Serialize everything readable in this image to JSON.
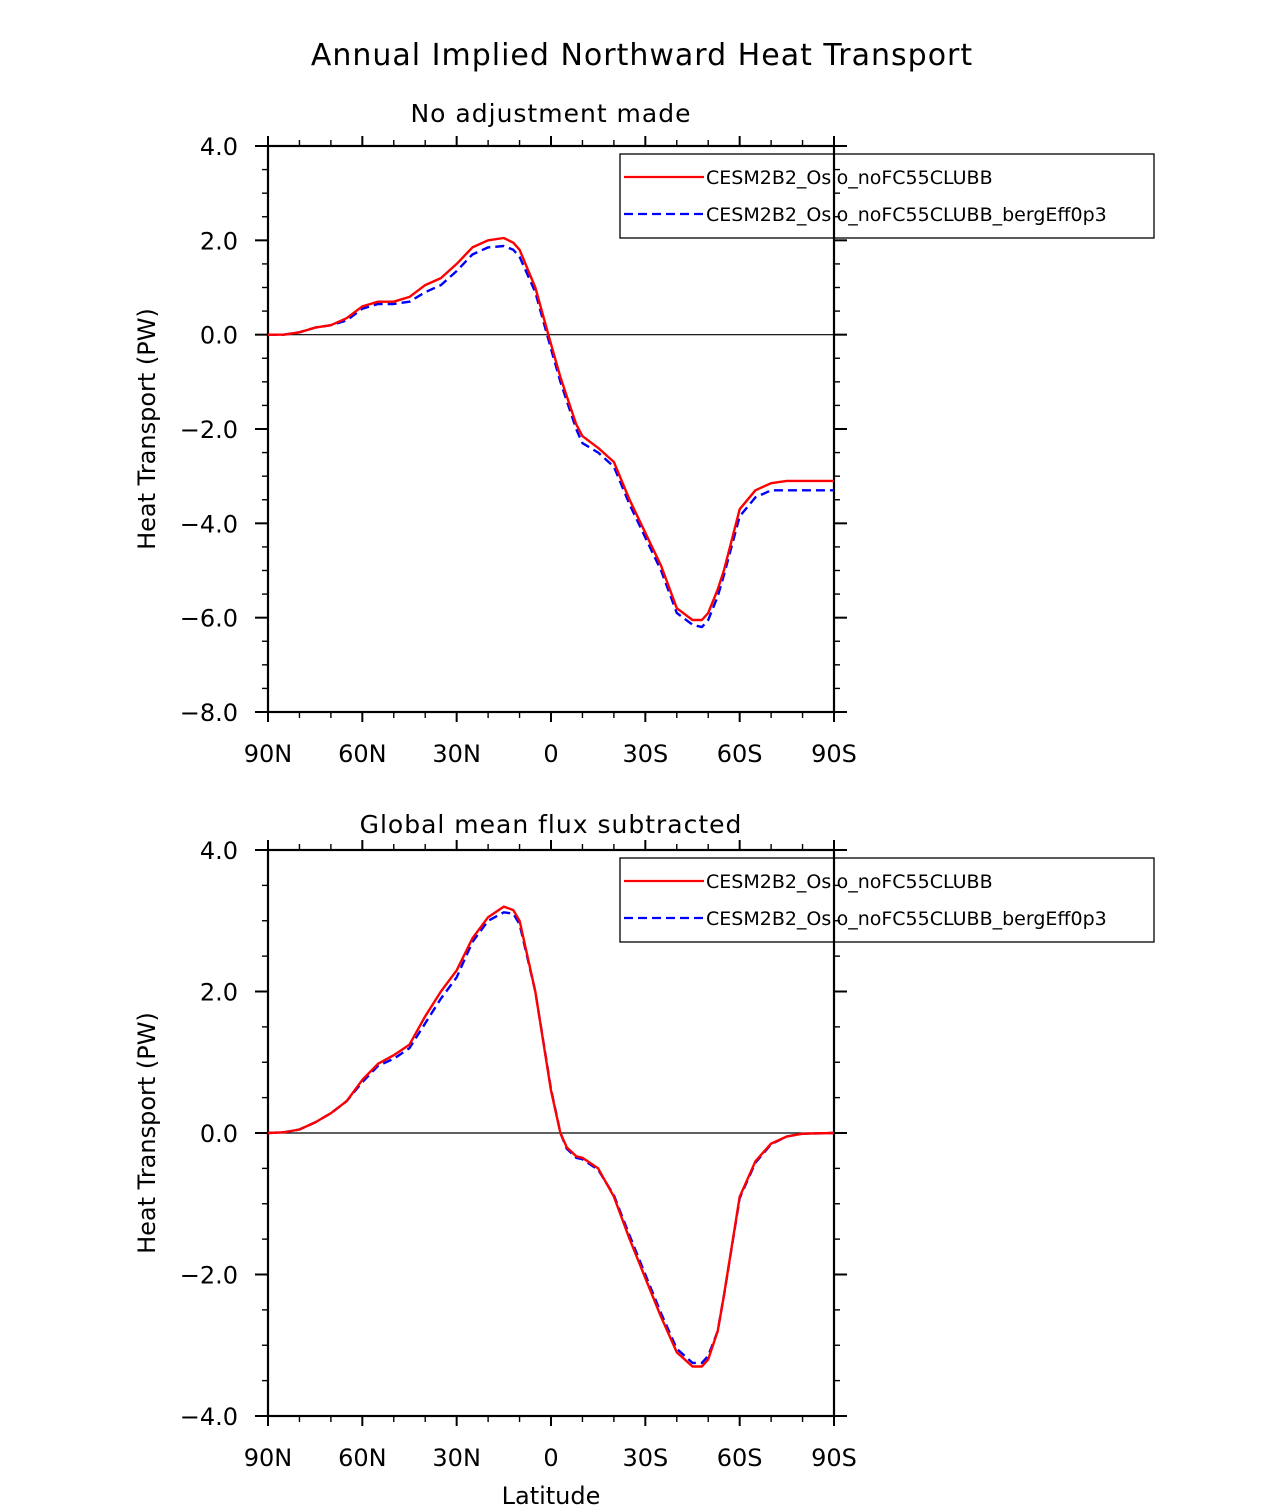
{
  "figure": {
    "title": "Annual Implied Northward Heat Transport"
  },
  "chart_data": [
    {
      "type": "line",
      "title": "No adjustment made",
      "xlabel": "",
      "ylabel": "Heat Transport (PW)",
      "xlim": [
        -90,
        90
      ],
      "ylim": [
        -8,
        4
      ],
      "xticks": [
        -90,
        -60,
        -30,
        0,
        30,
        60,
        90
      ],
      "xtick_labels": [
        "90N",
        "60N",
        "30N",
        "0",
        "30S",
        "60S",
        "90S"
      ],
      "yticks": [
        -8,
        -6,
        -4,
        -2,
        0,
        2,
        4
      ],
      "ytick_labels": [
        "−8.0",
        "−6.0",
        "−4.0",
        "−2.0",
        "0.0",
        "2.0",
        "4.0"
      ],
      "legend_position": "top-right",
      "zero_line": true,
      "series": [
        {
          "name": "CESM2B2_Oslo_noFC55CLUBB",
          "color": "#ff0000",
          "dash": "solid",
          "x": [
            -90,
            -85,
            -80,
            -75,
            -70,
            -65,
            -60,
            -55,
            -50,
            -45,
            -40,
            -35,
            -30,
            -25,
            -20,
            -15,
            -12,
            -10,
            -5,
            0,
            3,
            5,
            8,
            10,
            15,
            20,
            25,
            30,
            35,
            40,
            45,
            48,
            50,
            53,
            55,
            60,
            65,
            70,
            75,
            80,
            90
          ],
          "y": [
            0,
            0,
            0.05,
            0.15,
            0.2,
            0.35,
            0.6,
            0.7,
            0.7,
            0.8,
            1.05,
            1.2,
            1.5,
            1.85,
            2.0,
            2.05,
            1.95,
            1.8,
            1.0,
            -0.2,
            -0.9,
            -1.3,
            -1.9,
            -2.15,
            -2.4,
            -2.7,
            -3.5,
            -4.2,
            -4.9,
            -5.8,
            -6.05,
            -6.05,
            -5.9,
            -5.4,
            -5.0,
            -3.7,
            -3.3,
            -3.15,
            -3.1,
            -3.1,
            -3.1
          ]
        },
        {
          "name": "CESM2B2_Oslo_noFC55CLUBB_bergEff0p3",
          "color": "#0000ff",
          "dash": "dashed",
          "x": [
            -90,
            -85,
            -80,
            -75,
            -70,
            -65,
            -60,
            -55,
            -50,
            -45,
            -40,
            -35,
            -30,
            -25,
            -20,
            -15,
            -12,
            -10,
            -5,
            0,
            3,
            5,
            8,
            10,
            15,
            20,
            25,
            30,
            35,
            40,
            45,
            48,
            50,
            53,
            55,
            60,
            65,
            70,
            75,
            80,
            90
          ],
          "y": [
            0,
            0,
            0.05,
            0.15,
            0.2,
            0.3,
            0.55,
            0.65,
            0.65,
            0.7,
            0.9,
            1.05,
            1.35,
            1.7,
            1.85,
            1.88,
            1.8,
            1.65,
            0.9,
            -0.3,
            -1.0,
            -1.4,
            -2.0,
            -2.3,
            -2.5,
            -2.8,
            -3.6,
            -4.3,
            -5.0,
            -5.9,
            -6.15,
            -6.2,
            -6.05,
            -5.55,
            -5.1,
            -3.85,
            -3.45,
            -3.3,
            -3.3,
            -3.3,
            -3.3
          ]
        }
      ]
    },
    {
      "type": "line",
      "title": "Global mean flux subtracted",
      "xlabel": "Latitude",
      "ylabel": "Heat Transport (PW)",
      "xlim": [
        -90,
        90
      ],
      "ylim": [
        -4,
        4
      ],
      "xticks": [
        -90,
        -60,
        -30,
        0,
        30,
        60,
        90
      ],
      "xtick_labels": [
        "90N",
        "60N",
        "30N",
        "0",
        "30S",
        "60S",
        "90S"
      ],
      "yticks": [
        -4,
        -2,
        0,
        2,
        4
      ],
      "ytick_labels": [
        "−4.0",
        "−2.0",
        "0.0",
        "2.0",
        "4.0"
      ],
      "legend_position": "top-right",
      "zero_line": true,
      "series": [
        {
          "name": "CESM2B2_Oslo_noFC55CLUBB",
          "color": "#ff0000",
          "dash": "solid",
          "x": [
            -90,
            -85,
            -80,
            -75,
            -70,
            -65,
            -60,
            -55,
            -50,
            -45,
            -40,
            -35,
            -30,
            -25,
            -20,
            -15,
            -12,
            -10,
            -5,
            0,
            3,
            5,
            8,
            10,
            15,
            20,
            25,
            30,
            35,
            40,
            45,
            48,
            50,
            53,
            55,
            60,
            65,
            70,
            75,
            80,
            90
          ],
          "y": [
            0,
            0.01,
            0.05,
            0.15,
            0.28,
            0.45,
            0.75,
            0.98,
            1.1,
            1.25,
            1.65,
            2.0,
            2.3,
            2.75,
            3.05,
            3.2,
            3.15,
            3.0,
            2.0,
            0.6,
            0,
            -0.2,
            -0.33,
            -0.35,
            -0.5,
            -0.9,
            -1.5,
            -2.05,
            -2.6,
            -3.1,
            -3.3,
            -3.3,
            -3.2,
            -2.8,
            -2.3,
            -0.9,
            -0.4,
            -0.15,
            -0.05,
            -0.01,
            0
          ]
        },
        {
          "name": "CESM2B2_Oslo_noFC55CLUBB_bergEff0p3",
          "color": "#0000ff",
          "dash": "dashed",
          "x": [
            -90,
            -85,
            -80,
            -75,
            -70,
            -65,
            -60,
            -55,
            -50,
            -45,
            -40,
            -35,
            -30,
            -25,
            -20,
            -15,
            -12,
            -10,
            -5,
            0,
            3,
            5,
            8,
            10,
            15,
            20,
            25,
            30,
            35,
            40,
            45,
            48,
            50,
            53,
            55,
            60,
            65,
            70,
            75,
            80,
            90
          ],
          "y": [
            0,
            0.01,
            0.05,
            0.15,
            0.28,
            0.45,
            0.72,
            0.95,
            1.05,
            1.2,
            1.55,
            1.9,
            2.2,
            2.7,
            3.0,
            3.12,
            3.1,
            2.95,
            2.0,
            0.62,
            0,
            -0.22,
            -0.35,
            -0.37,
            -0.52,
            -0.88,
            -1.45,
            -2.0,
            -2.55,
            -3.05,
            -3.25,
            -3.25,
            -3.15,
            -2.8,
            -2.3,
            -0.92,
            -0.42,
            -0.16,
            -0.05,
            -0.01,
            0
          ]
        }
      ]
    }
  ]
}
